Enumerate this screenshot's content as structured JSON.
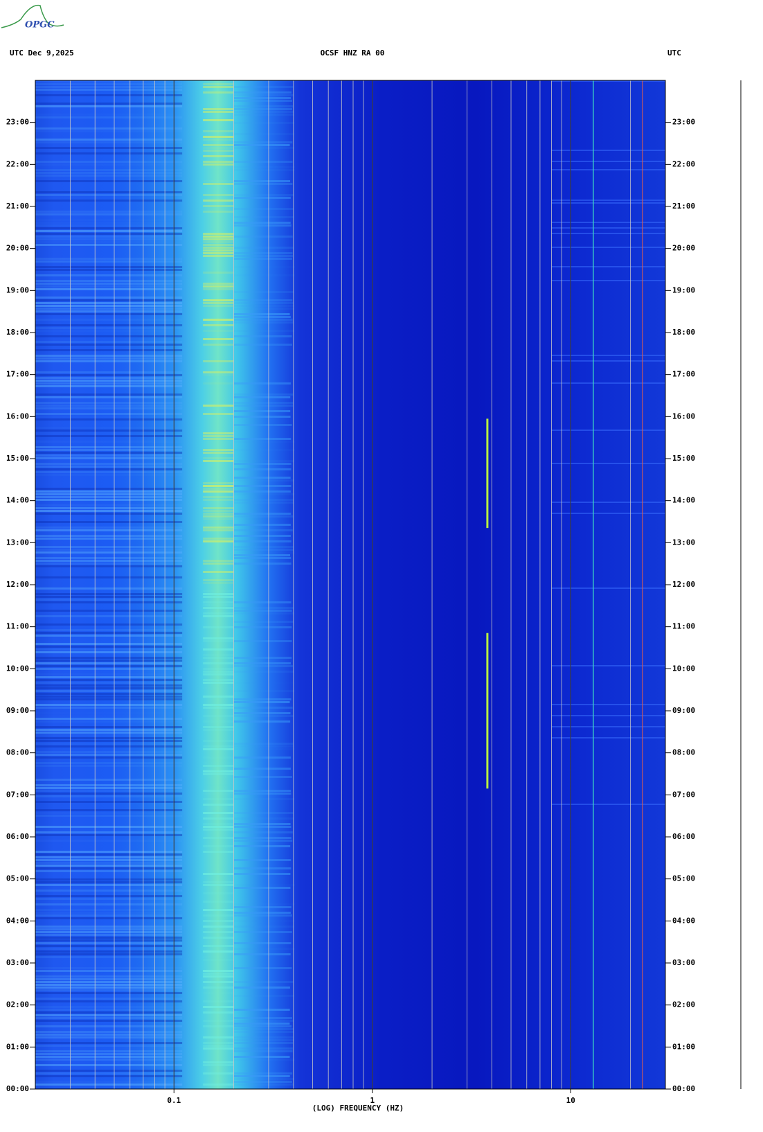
{
  "chart_data": {
    "type": "spectrogram",
    "logo": "OPGC",
    "title_left": "UTC  Dec 9,2025",
    "title": "OCSF HNZ RA 00",
    "title_right": "UTC",
    "xlabel": "(LOG) FREQUENCY (HZ)",
    "xscale": "log",
    "xlim": [
      0.02,
      30
    ],
    "xticks": [
      0.1,
      1,
      10
    ],
    "xgrid": [
      0.03,
      0.04,
      0.05,
      0.06,
      0.07,
      0.08,
      0.09,
      0.1,
      0.2,
      0.3,
      0.4,
      0.5,
      0.6,
      0.7,
      0.8,
      0.9,
      1,
      2,
      3,
      4,
      5,
      6,
      7,
      8,
      9,
      10,
      20,
      30
    ],
    "ylim": [
      0,
      24
    ],
    "yticks": [
      {
        "value": 0,
        "label": "00:00"
      },
      {
        "value": 1,
        "label": "01:00"
      },
      {
        "value": 2,
        "label": "02:00"
      },
      {
        "value": 3,
        "label": "03:00"
      },
      {
        "value": 4,
        "label": "04:00"
      },
      {
        "value": 5,
        "label": "05:00"
      },
      {
        "value": 6,
        "label": "06:00"
      },
      {
        "value": 7,
        "label": "07:00"
      },
      {
        "value": 8,
        "label": "08:00"
      },
      {
        "value": 9,
        "label": "09:00"
      },
      {
        "value": 10,
        "label": "10:00"
      },
      {
        "value": 11,
        "label": "11:00"
      },
      {
        "value": 12,
        "label": "12:00"
      },
      {
        "value": 13,
        "label": "13:00"
      },
      {
        "value": 14,
        "label": "14:00"
      },
      {
        "value": 15,
        "label": "15:00"
      },
      {
        "value": 16,
        "label": "16:00"
      },
      {
        "value": 17,
        "label": "17:00"
      },
      {
        "value": 18,
        "label": "18:00"
      },
      {
        "value": 19,
        "label": "19:00"
      },
      {
        "value": 20,
        "label": "20:00"
      },
      {
        "value": 21,
        "label": "21:00"
      },
      {
        "value": 22,
        "label": "22:00"
      },
      {
        "value": 23,
        "label": "23:00"
      }
    ]
  }
}
